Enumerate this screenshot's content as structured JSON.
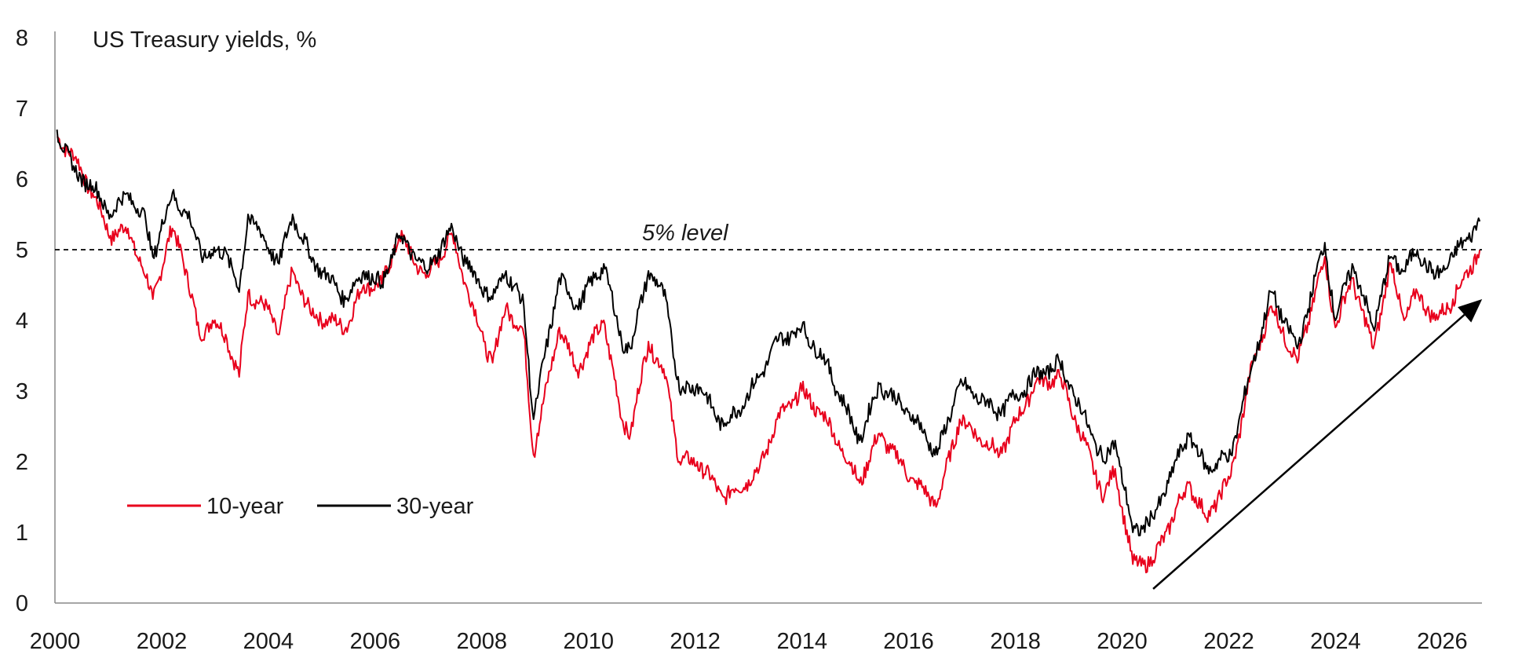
{
  "chart_data": {
    "type": "line",
    "title": "US Treasury yields, %",
    "xlabel": "",
    "ylabel": "",
    "xlim": [
      "2000-01-01",
      "2026-09-30"
    ],
    "ylim": [
      0,
      8
    ],
    "x_ticks": [
      "2000",
      "2002",
      "2004",
      "2006",
      "2008",
      "2010",
      "2012",
      "2014",
      "2016",
      "2018",
      "2020",
      "2022",
      "2024",
      "2026"
    ],
    "y_ticks": [
      "0",
      "1",
      "2",
      "3",
      "4",
      "5",
      "6",
      "7",
      "8"
    ],
    "grid": false,
    "legend_position": "bottom-left",
    "reference_line": {
      "value": 5,
      "label": "5% level",
      "style": "dashed",
      "color": "#000000"
    },
    "annotation_arrow": {
      "from": {
        "x": "2020-08-01",
        "y": 0.2
      },
      "to": {
        "x": "2026-10-01",
        "y": 4.3
      }
    },
    "series": [
      {
        "name": "10-year",
        "color": "#e8001c",
        "points": [
          [
            "2000-01-15",
            6.6
          ],
          [
            "2000-05-15",
            6.3
          ],
          [
            "2000-09-15",
            5.8
          ],
          [
            "2001-01-15",
            5.2
          ],
          [
            "2001-05-15",
            5.3
          ],
          [
            "2001-09-15",
            4.6
          ],
          [
            "2001-11-01",
            4.3
          ],
          [
            "2002-03-15",
            5.3
          ],
          [
            "2002-05-15",
            5.0
          ],
          [
            "2002-09-15",
            3.8
          ],
          [
            "2002-12-15",
            4.0
          ],
          [
            "2003-03-15",
            3.8
          ],
          [
            "2003-06-15",
            3.2
          ],
          [
            "2003-08-15",
            4.4
          ],
          [
            "2004-01-15",
            4.1
          ],
          [
            "2004-03-15",
            3.8
          ],
          [
            "2004-06-15",
            4.7
          ],
          [
            "2004-10-15",
            4.1
          ],
          [
            "2005-02-15",
            4.0
          ],
          [
            "2005-06-15",
            3.9
          ],
          [
            "2005-10-15",
            4.5
          ],
          [
            "2006-02-15",
            4.5
          ],
          [
            "2006-06-15",
            5.2
          ],
          [
            "2006-12-15",
            4.6
          ],
          [
            "2007-06-15",
            5.2
          ],
          [
            "2007-09-15",
            4.5
          ],
          [
            "2008-01-15",
            3.7
          ],
          [
            "2008-03-15",
            3.4
          ],
          [
            "2008-06-15",
            4.2
          ],
          [
            "2008-10-15",
            3.8
          ],
          [
            "2008-12-20",
            2.1
          ],
          [
            "2009-01-15",
            2.4
          ],
          [
            "2009-06-15",
            3.9
          ],
          [
            "2009-10-15",
            3.3
          ],
          [
            "2010-04-15",
            4.0
          ],
          [
            "2010-08-15",
            2.6
          ],
          [
            "2010-10-15",
            2.4
          ],
          [
            "2011-02-15",
            3.7
          ],
          [
            "2011-06-15",
            3.2
          ],
          [
            "2011-09-15",
            2.0
          ],
          [
            "2012-01-15",
            2.0
          ],
          [
            "2012-07-15",
            1.5
          ],
          [
            "2012-12-15",
            1.7
          ],
          [
            "2013-03-15",
            1.9
          ],
          [
            "2013-07-15",
            2.6
          ],
          [
            "2013-12-31",
            3.0
          ],
          [
            "2014-06-15",
            2.6
          ],
          [
            "2015-01-31",
            1.7
          ],
          [
            "2015-06-15",
            2.4
          ],
          [
            "2016-02-15",
            1.7
          ],
          [
            "2016-07-15",
            1.4
          ],
          [
            "2016-12-15",
            2.6
          ],
          [
            "2017-09-15",
            2.1
          ],
          [
            "2018-05-15",
            3.1
          ],
          [
            "2018-11-01",
            3.2
          ],
          [
            "2019-08-31",
            1.5
          ],
          [
            "2019-11-15",
            1.9
          ],
          [
            "2020-03-15",
            0.55
          ],
          [
            "2020-08-01",
            0.6
          ],
          [
            "2021-03-31",
            1.7
          ],
          [
            "2021-08-01",
            1.2
          ],
          [
            "2022-01-15",
            1.8
          ],
          [
            "2022-06-15",
            3.4
          ],
          [
            "2022-10-20",
            4.2
          ],
          [
            "2023-04-15",
            3.4
          ],
          [
            "2023-10-20",
            4.9
          ],
          [
            "2023-12-31",
            3.9
          ],
          [
            "2024-04-25",
            4.6
          ],
          [
            "2024-09-15",
            3.6
          ],
          [
            "2025-01-15",
            4.8
          ],
          [
            "2025-04-15",
            4.0
          ],
          [
            "2025-07-15",
            4.4
          ],
          [
            "2025-11-15",
            4.0
          ],
          [
            "2026-03-15",
            4.3
          ],
          [
            "2026-09-15",
            5.0
          ]
        ]
      },
      {
        "name": "30-year",
        "color": "#000000",
        "points": [
          [
            "2000-01-15",
            6.7
          ],
          [
            "2000-05-15",
            6.1
          ],
          [
            "2000-09-15",
            5.9
          ],
          [
            "2001-01-15",
            5.5
          ],
          [
            "2001-05-15",
            5.8
          ],
          [
            "2001-09-15",
            5.4
          ],
          [
            "2001-11-01",
            4.9
          ],
          [
            "2002-03-15",
            5.8
          ],
          [
            "2002-07-15",
            5.4
          ],
          [
            "2002-10-15",
            4.9
          ],
          [
            "2003-03-15",
            5.0
          ],
          [
            "2003-06-15",
            4.4
          ],
          [
            "2003-08-15",
            5.5
          ],
          [
            "2004-01-15",
            5.0
          ],
          [
            "2004-03-15",
            4.8
          ],
          [
            "2004-06-15",
            5.5
          ],
          [
            "2004-10-15",
            4.9
          ],
          [
            "2005-06-15",
            4.3
          ],
          [
            "2005-10-15",
            4.7
          ],
          [
            "2006-02-15",
            4.5
          ],
          [
            "2006-06-15",
            5.2
          ],
          [
            "2006-12-15",
            4.7
          ],
          [
            "2007-06-15",
            5.3
          ],
          [
            "2007-09-15",
            4.8
          ],
          [
            "2008-03-15",
            4.3
          ],
          [
            "2008-06-15",
            4.7
          ],
          [
            "2008-10-15",
            4.2
          ],
          [
            "2008-12-20",
            2.6
          ],
          [
            "2009-01-15",
            2.9
          ],
          [
            "2009-06-15",
            4.6
          ],
          [
            "2009-10-15",
            4.2
          ],
          [
            "2010-04-15",
            4.8
          ],
          [
            "2010-08-15",
            3.7
          ],
          [
            "2010-10-15",
            3.6
          ],
          [
            "2011-02-15",
            4.7
          ],
          [
            "2011-06-15",
            4.3
          ],
          [
            "2011-09-15",
            3.0
          ],
          [
            "2012-01-15",
            3.1
          ],
          [
            "2012-07-15",
            2.5
          ],
          [
            "2012-12-15",
            2.9
          ],
          [
            "2013-03-15",
            3.2
          ],
          [
            "2013-07-15",
            3.7
          ],
          [
            "2013-12-31",
            3.9
          ],
          [
            "2014-06-15",
            3.4
          ],
          [
            "2015-01-31",
            2.3
          ],
          [
            "2015-06-15",
            3.1
          ],
          [
            "2016-02-15",
            2.6
          ],
          [
            "2016-07-15",
            2.1
          ],
          [
            "2016-12-15",
            3.1
          ],
          [
            "2017-09-15",
            2.7
          ],
          [
            "2018-05-15",
            3.2
          ],
          [
            "2018-11-01",
            3.4
          ],
          [
            "2019-08-31",
            2.0
          ],
          [
            "2019-11-15",
            2.3
          ],
          [
            "2020-03-15",
            1.0
          ],
          [
            "2020-08-01",
            1.2
          ],
          [
            "2021-03-31",
            2.4
          ],
          [
            "2021-08-01",
            1.9
          ],
          [
            "2022-01-15",
            2.1
          ],
          [
            "2022-06-15",
            3.4
          ],
          [
            "2022-10-20",
            4.4
          ],
          [
            "2023-04-15",
            3.6
          ],
          [
            "2023-10-20",
            5.1
          ],
          [
            "2023-12-31",
            4.0
          ],
          [
            "2024-04-25",
            4.8
          ],
          [
            "2024-09-15",
            3.9
          ],
          [
            "2025-01-15",
            4.9
          ],
          [
            "2025-04-15",
            4.7
          ],
          [
            "2025-07-15",
            5.0
          ],
          [
            "2025-11-15",
            4.6
          ],
          [
            "2026-03-15",
            4.9
          ],
          [
            "2026-09-15",
            5.4
          ]
        ]
      }
    ]
  }
}
